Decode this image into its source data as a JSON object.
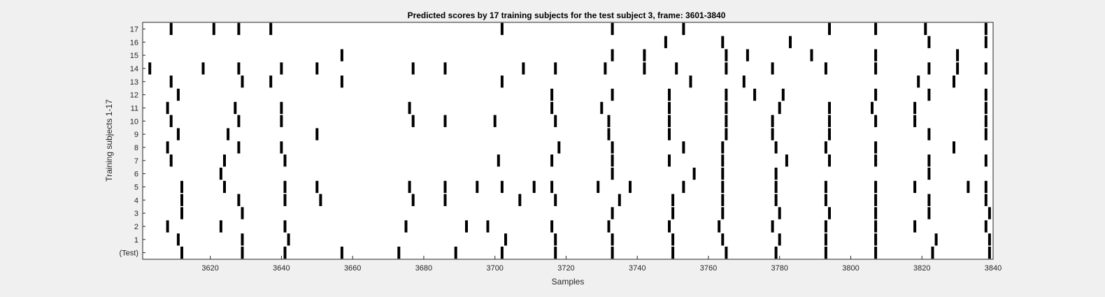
{
  "chart_data": {
    "type": "raster",
    "title": "Predicted scores by 17 training subjects for the test subject 3, frame: 3601-3840",
    "xlabel": "Samples",
    "ylabel": "Training subjects 1-17",
    "xlim": [
      3601,
      3840
    ],
    "xticks": [
      3620,
      3640,
      3660,
      3680,
      3700,
      3720,
      3740,
      3760,
      3780,
      3800,
      3820,
      3840
    ],
    "grid": false,
    "rows": [
      {
        "label": "(Test)",
        "events": [
          3612,
          3629,
          3641,
          3657,
          3673,
          3689,
          3702,
          3717,
          3733,
          3750,
          3765,
          3779,
          3793,
          3807,
          3823,
          3839
        ]
      },
      {
        "label": "1",
        "events": [
          3611,
          3629,
          3642,
          3703,
          3717,
          3733,
          3750,
          3764,
          3780,
          3793,
          3807,
          3824,
          3839
        ]
      },
      {
        "label": "2",
        "events": [
          3608,
          3623,
          3641,
          3675,
          3692,
          3698,
          3716,
          3732,
          3749,
          3763,
          3778,
          3793,
          3807,
          3818,
          3838
        ]
      },
      {
        "label": "3",
        "events": [
          3612,
          3629,
          3733,
          3750,
          3764,
          3780,
          3794,
          3807,
          3822,
          3839
        ]
      },
      {
        "label": "4",
        "events": [
          3612,
          3628,
          3641,
          3651,
          3677,
          3686,
          3707,
          3717,
          3735,
          3750,
          3764,
          3779,
          3793,
          3807,
          3822,
          3838
        ]
      },
      {
        "label": "5",
        "events": [
          3612,
          3624,
          3641,
          3650,
          3676,
          3686,
          3695,
          3702,
          3711,
          3716,
          3729,
          3738,
          3753,
          3764,
          3779,
          3793,
          3807,
          3818,
          3833,
          3838
        ]
      },
      {
        "label": "6",
        "events": [
          3623,
          3733,
          3756,
          3764,
          3779,
          3822
        ]
      },
      {
        "label": "7",
        "events": [
          3609,
          3624,
          3641,
          3701,
          3716,
          3733,
          3749,
          3764,
          3782,
          3794,
          3807,
          3822,
          3838
        ]
      },
      {
        "label": "8",
        "events": [
          3608,
          3628,
          3640,
          3718,
          3733,
          3753,
          3764,
          3779,
          3793,
          3807,
          3829
        ]
      },
      {
        "label": "9",
        "events": [
          3611,
          3625,
          3650,
          3732,
          3749,
          3765,
          3778,
          3794,
          3822,
          3838
        ]
      },
      {
        "label": "10",
        "events": [
          3609,
          3628,
          3640,
          3677,
          3686,
          3700,
          3717,
          3732,
          3749,
          3765,
          3778,
          3794,
          3807,
          3818,
          3838
        ]
      },
      {
        "label": "11",
        "events": [
          3608,
          3627,
          3640,
          3676,
          3716,
          3730,
          3749,
          3765,
          3780,
          3794,
          3806,
          3818,
          3838
        ]
      },
      {
        "label": "12",
        "events": [
          3611,
          3716,
          3733,
          3749,
          3765,
          3773,
          3781,
          3807,
          3822,
          3838
        ]
      },
      {
        "label": "13",
        "events": [
          3609,
          3629,
          3637,
          3657,
          3702,
          3755,
          3770,
          3819,
          3829
        ]
      },
      {
        "label": "14",
        "events": [
          3603,
          3618,
          3628,
          3640,
          3650,
          3677,
          3686,
          3708,
          3717,
          3731,
          3742,
          3751,
          3765,
          3778,
          3793,
          3807,
          3822,
          3830,
          3838
        ]
      },
      {
        "label": "15",
        "events": [
          3657,
          3733,
          3742,
          3765,
          3771,
          3789,
          3807,
          3830
        ]
      },
      {
        "label": "16",
        "events": [
          3748,
          3764,
          3783,
          3822,
          3838
        ]
      },
      {
        "label": "17",
        "events": [
          3609,
          3621,
          3628,
          3637,
          3702,
          3733,
          3753,
          3794,
          3807,
          3821,
          3838
        ]
      }
    ]
  }
}
